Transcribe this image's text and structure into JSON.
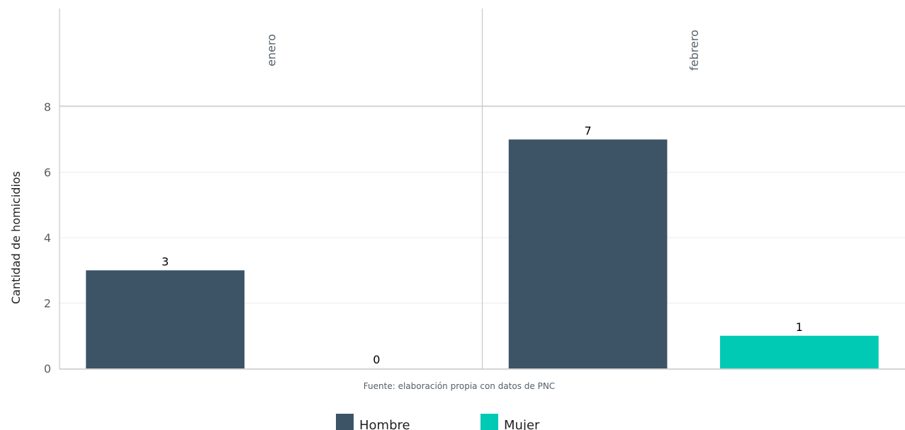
{
  "chart_data": {
    "type": "bar",
    "ylabel": "Cantidad de homicidios",
    "caption": "Fuente: elaboración propia con datos de PNC",
    "ylim": [
      0,
      8
    ],
    "yticks": [
      0,
      2,
      4,
      6,
      8
    ],
    "facets": [
      "enero",
      "febrero"
    ],
    "categories": [
      "Hombre",
      "Mujer"
    ],
    "series": [
      {
        "name": "Hombre",
        "color": "#3d5467",
        "values": [
          3,
          7
        ]
      },
      {
        "name": "Mujer",
        "color": "#00c9b4",
        "values": [
          0,
          1
        ]
      }
    ],
    "legend_position": "bottom",
    "grid": true
  }
}
